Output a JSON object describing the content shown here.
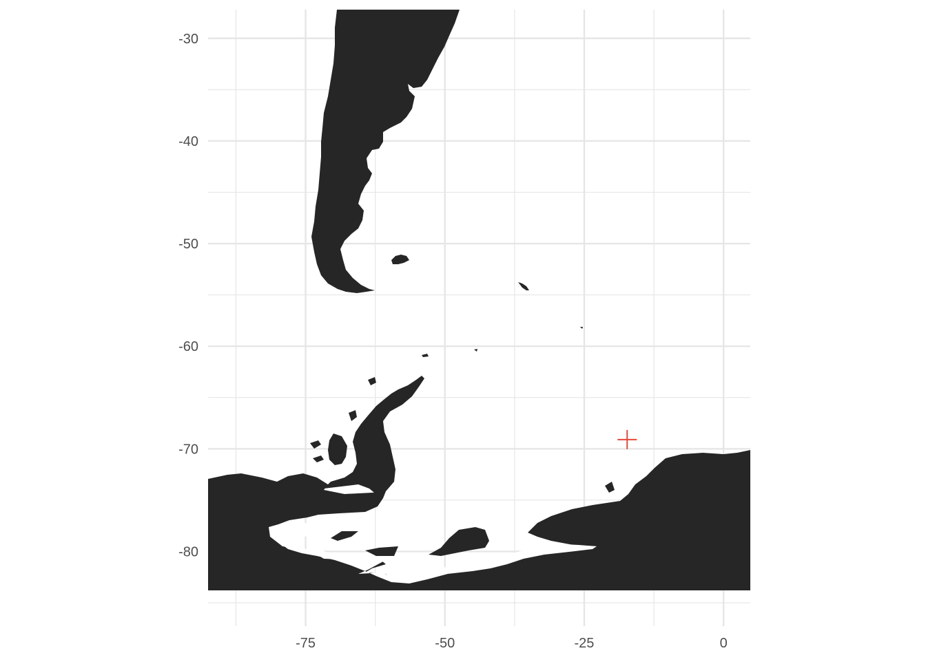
{
  "map": {
    "type": "map",
    "title": "",
    "xlabel": "",
    "ylabel": "",
    "x_range": [
      -92.5,
      4.8
    ],
    "y_range": [
      -84.6,
      -27.2
    ],
    "x_ticks_major": [
      -75,
      -50,
      -25,
      0
    ],
    "x_ticks_minor": [
      -87.5,
      -62.5,
      -37.5,
      -12.5
    ],
    "y_ticks_major": [
      -30,
      -40,
      -50,
      -60,
      -70,
      -80
    ],
    "y_ticks_minor": [
      -35,
      -45,
      -55,
      -65,
      -75,
      -85
    ],
    "x_tick_labels": [
      "-75",
      "-50",
      "-25",
      "0"
    ],
    "y_tick_labels": [
      "-30",
      "-40",
      "-50",
      "-60",
      "-70",
      "-80"
    ],
    "grid": true,
    "marker": {
      "symbol": "cross",
      "lon": -17.3,
      "lat": -69.1,
      "color": "#e8473a"
    },
    "colors": {
      "land": "#262626",
      "grid": "#e6e6e6",
      "background": "#ffffff",
      "tick_text": "#4d4d4d"
    }
  }
}
